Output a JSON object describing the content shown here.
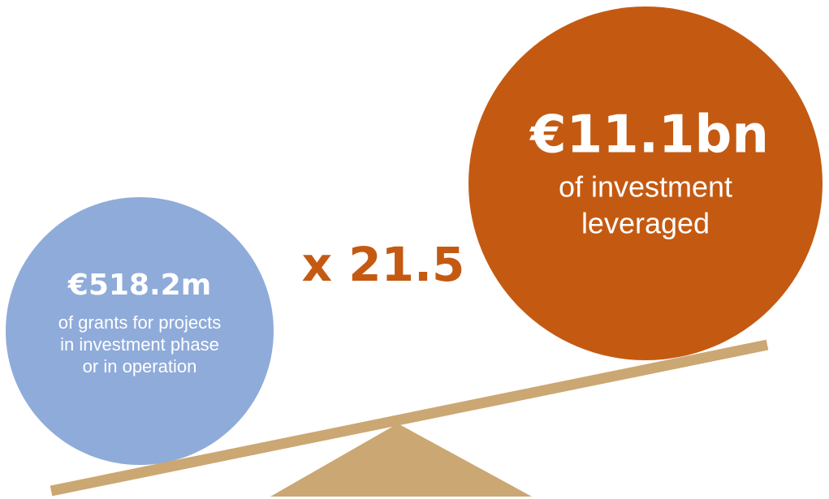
{
  "left": {
    "amount": "€518.2m",
    "lines": [
      "of grants for projects",
      "in investment phase",
      "or in operation"
    ]
  },
  "multiplier": "x 21.5",
  "right": {
    "amount": "€11.1bn",
    "lines": [
      "of investment",
      "leveraged"
    ]
  }
}
